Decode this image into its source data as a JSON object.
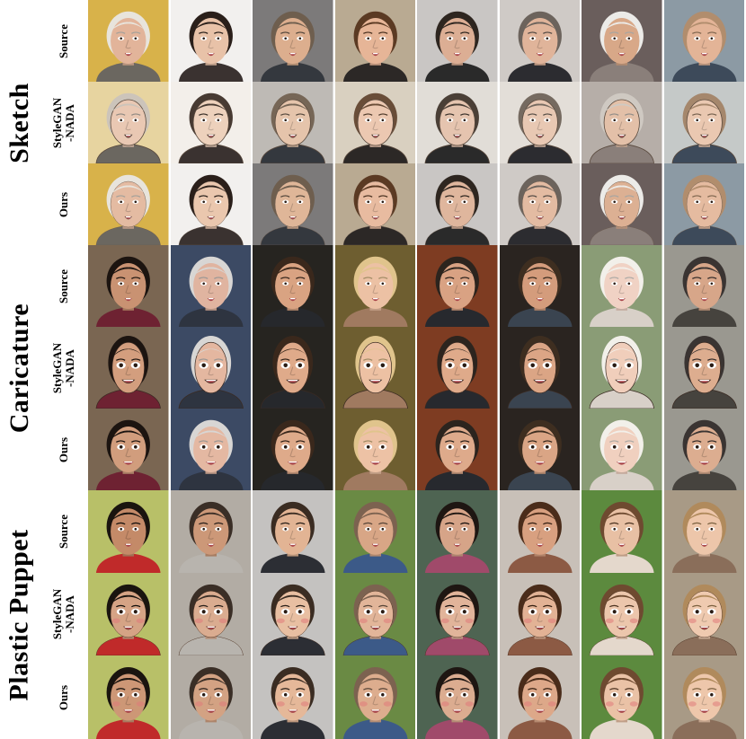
{
  "groups": [
    {
      "label": "Sketch",
      "rows": [
        {
          "label": "Source"
        },
        {
          "label": "StyleGAN\n-NADA"
        },
        {
          "label": "Ours"
        }
      ],
      "tiles": [
        {
          "bg": "#d8b24a",
          "skin": "#e2b49a",
          "hair": "#e8e4dc",
          "shirt": "#6b6760"
        },
        {
          "bg": "#f2f0ee",
          "skin": "#e8c2a8",
          "hair": "#2a1f1a",
          "shirt": "#3a3230"
        },
        {
          "bg": "#7c7a7a",
          "skin": "#dcae8e",
          "hair": "#6e5e4e",
          "shirt": "#34383e"
        },
        {
          "bg": "#b9aa92",
          "skin": "#e6b597",
          "hair": "#5b3a23",
          "shirt": "#2c2826"
        },
        {
          "bg": "#c9c6c4",
          "skin": "#dcae94",
          "hair": "#2e2620",
          "shirt": "#2a2a2a"
        },
        {
          "bg": "#cfcac6",
          "skin": "#e0b49a",
          "hair": "#6c635c",
          "shirt": "#2c2c30"
        },
        {
          "bg": "#6a5e5c",
          "skin": "#d8a888",
          "hair": "#ecebe8",
          "shirt": "#8a7f7a"
        },
        {
          "bg": "#8c9aa4",
          "skin": "#e3b497",
          "hair": "#b18d6d",
          "shirt": "#3d4a5a"
        }
      ],
      "styles": [
        "photo",
        "sketch",
        "sketch-light"
      ]
    },
    {
      "label": "Caricature",
      "rows": [
        {
          "label": "Source"
        },
        {
          "label": "StyleGAN\n-NADA"
        },
        {
          "label": "Ours"
        }
      ],
      "tiles": [
        {
          "bg": "#7a6652",
          "skin": "#c99272",
          "hair": "#1c1410",
          "shirt": "#6e2232"
        },
        {
          "bg": "#3c4a64",
          "skin": "#e0b4a0",
          "hair": "#d8d6d4",
          "shirt": "#2e3440"
        },
        {
          "bg": "#262420",
          "skin": "#d9a382",
          "hair": "#3a281c",
          "shirt": "#26282c"
        },
        {
          "bg": "#6e5e30",
          "skin": "#ecc1a4",
          "hair": "#e0c48c",
          "shirt": "#a07a60"
        },
        {
          "bg": "#7e3c22",
          "skin": "#d9a283",
          "hair": "#2c241e",
          "shirt": "#27292e"
        },
        {
          "bg": "#2a2420",
          "skin": "#d49c7c",
          "hair": "#3e2e20",
          "shirt": "#3a4450"
        },
        {
          "bg": "#8a9c76",
          "skin": "#f0d2c4",
          "hair": "#f2f0ea",
          "shirt": "#d8d0c8"
        },
        {
          "bg": "#9a9890",
          "skin": "#d7a689",
          "hair": "#3a3432",
          "shirt": "#46433e"
        }
      ],
      "styles": [
        "photo",
        "caricature",
        "caricature-soft"
      ]
    },
    {
      "label": "Plastic Puppet",
      "rows": [
        {
          "label": "Source"
        },
        {
          "label": "StyleGAN\n-NADA"
        },
        {
          "label": "Ours"
        }
      ],
      "tiles": [
        {
          "bg": "#b8c068",
          "skin": "#c48a68",
          "hair": "#1a140f",
          "shirt": "#c02a2a"
        },
        {
          "bg": "#b2aca4",
          "skin": "#cc9878",
          "hair": "#3a2e26",
          "shirt": "#b8b4ae"
        },
        {
          "bg": "#c4c2c0",
          "skin": "#e2b494",
          "hair": "#3a2c22",
          "shirt": "#2c2e34"
        },
        {
          "bg": "#6a8a44",
          "skin": "#d8a686",
          "hair": "#7c6250",
          "shirt": "#3c5a88"
        },
        {
          "bg": "#4e6452",
          "skin": "#d6a488",
          "hair": "#1e1612",
          "shirt": "#a04a6a"
        },
        {
          "bg": "#c8c0b8",
          "skin": "#d8a080",
          "hair": "#4a2c1a",
          "shirt": "#8c5a44"
        },
        {
          "bg": "#5c8a3e",
          "skin": "#e8c0a4",
          "hair": "#6e4a30",
          "shirt": "#e4d8cc"
        },
        {
          "bg": "#a89a86",
          "skin": "#edc6aa",
          "hair": "#b08a5c",
          "shirt": "#8a6e5a"
        }
      ],
      "styles": [
        "photo",
        "puppet",
        "puppet-soft"
      ]
    }
  ]
}
